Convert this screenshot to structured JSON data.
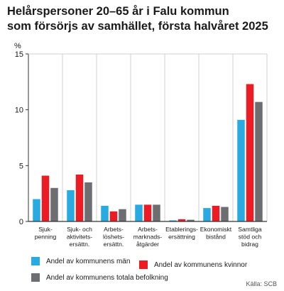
{
  "title": {
    "line1": "Helårspersoner 20–65 år i Falu kommun",
    "line2": "som försörjs av samhället, första halvåret 2025"
  },
  "source": "Källa: SCB",
  "colors": {
    "men": "#29abe2",
    "women": "#ed1c24",
    "total": "#6d6e71",
    "grid": "#cfcfcf",
    "axis": "#333333"
  },
  "chart_data": {
    "type": "bar",
    "ylabel": "%",
    "ylim": [
      0,
      15
    ],
    "yticks": [
      0,
      5,
      10,
      15
    ],
    "grid": "vertical separators",
    "legend_position": "bottom",
    "categories": [
      [
        "Sjuk-",
        "penning"
      ],
      [
        "Sjuk- och",
        "aktivitets-",
        "ersättn."
      ],
      [
        "Arbets-",
        "löshets-",
        "ersättn."
      ],
      [
        "Arbets-",
        "marknads-",
        "åtgärder"
      ],
      [
        "Etablerings-",
        "ersättning"
      ],
      [
        "Ekonomiskt",
        "bistånd"
      ],
      [
        "Samtliga",
        "stöd och",
        "bidrag"
      ]
    ],
    "series": [
      {
        "name": "Andel av kommunens män",
        "values": [
          2.0,
          2.8,
          1.4,
          1.5,
          0.1,
          1.2,
          9.1
        ]
      },
      {
        "name": "Andel av kommunens kvinnor",
        "values": [
          4.1,
          4.2,
          0.9,
          1.5,
          0.2,
          1.4,
          12.3
        ]
      },
      {
        "name": "Andel av kommunens totala befolkning",
        "values": [
          3.0,
          3.5,
          1.1,
          1.5,
          0.15,
          1.3,
          10.7
        ]
      }
    ]
  }
}
